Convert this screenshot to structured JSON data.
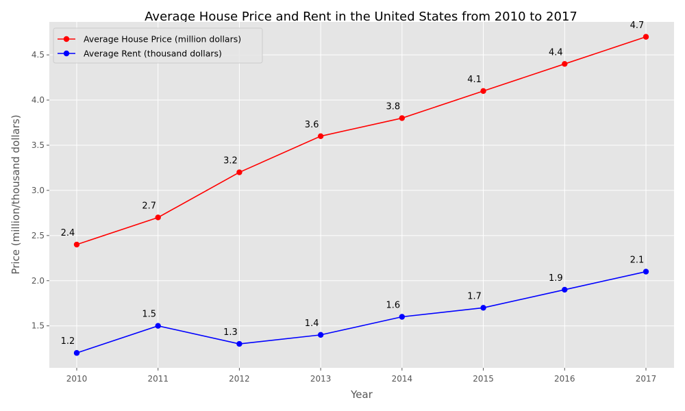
{
  "chart_data": {
    "type": "line",
    "title": "Average House Price and Rent in the United States from 2010 to 2017",
    "xlabel": "Year",
    "ylabel": "Price (million/thousand dollars)",
    "x": [
      "2010",
      "2011",
      "2012",
      "2013",
      "2014",
      "2015",
      "2016",
      "2017"
    ],
    "ylim": [
      1.035,
      4.865
    ],
    "yticks": [
      1.5,
      2.0,
      2.5,
      3.0,
      3.5,
      4.0,
      4.5
    ],
    "ytick_labels": [
      "1.5",
      "2.0",
      "2.5",
      "3.0",
      "3.5",
      "4.0",
      "4.5"
    ],
    "grid": true,
    "legend_position": "top-left",
    "series": [
      {
        "name": "Average House Price (million dollars)",
        "color": "#ff0000",
        "marker": "circle",
        "values": [
          2.4,
          2.7,
          3.2,
          3.6,
          3.8,
          4.1,
          4.4,
          4.7
        ],
        "labels": [
          "2.4",
          "2.7",
          "3.2",
          "3.6",
          "3.8",
          "4.1",
          "4.4",
          "4.7"
        ]
      },
      {
        "name": "Average Rent (thousand dollars)",
        "color": "#0000ff",
        "marker": "circle",
        "values": [
          1.2,
          1.5,
          1.3,
          1.4,
          1.6,
          1.7,
          1.9,
          2.1
        ],
        "labels": [
          "1.2",
          "1.5",
          "1.3",
          "1.4",
          "1.6",
          "1.7",
          "1.9",
          "2.1"
        ]
      }
    ],
    "colors": {
      "plot_background": "#e5e5e5",
      "grid": "#ffffff",
      "axis_text": "#555555"
    }
  }
}
